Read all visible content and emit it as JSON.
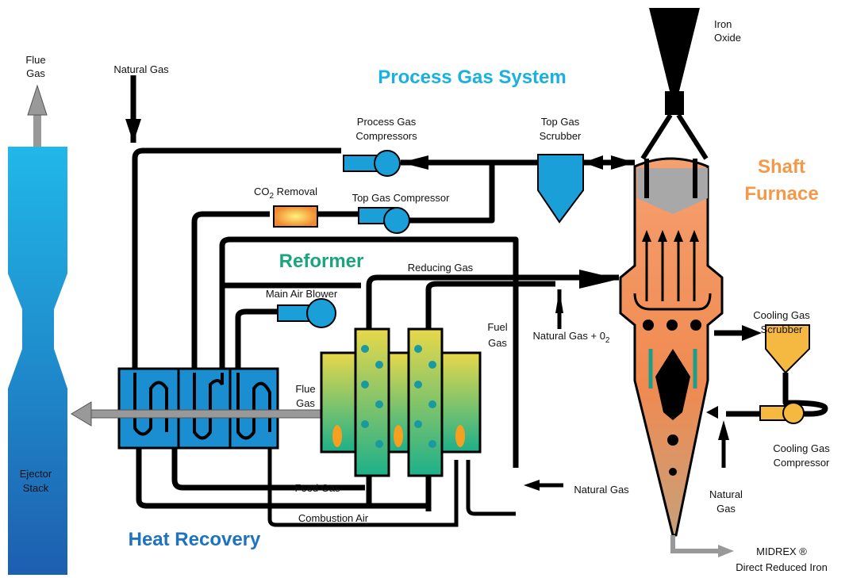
{
  "sections": {
    "process_gas_system": "Process Gas System",
    "shaft_furnace": [
      "Shaft",
      "Furnace"
    ],
    "reformer": "Reformer",
    "heat_recovery": "Heat Recovery"
  },
  "labels": {
    "flue_gas_stack": [
      "Flue",
      "Gas"
    ],
    "natural_gas_top": "Natural Gas",
    "iron_oxide": [
      "Iron",
      "Oxide"
    ],
    "process_gas_compressors": [
      "Process Gas",
      "Compressors"
    ],
    "top_gas_scrubber": [
      "Top Gas",
      "Scrubber"
    ],
    "co2_removal": [
      "CO",
      "2",
      " Removal"
    ],
    "top_gas_compressor": "Top Gas Compressor",
    "reducing_gas": "Reducing Gas",
    "main_air_blower": "Main Air Blower",
    "cooling_gas_scrubber": [
      "Cooling Gas",
      "Scrubber"
    ],
    "fuel_gas": [
      "Fuel",
      "Gas"
    ],
    "natural_gas_o2": [
      "Natural Gas + 0",
      "2"
    ],
    "flue_gas_reformer": [
      "Flue",
      "Gas"
    ],
    "ejector_stack": [
      "Ejector",
      "Stack"
    ],
    "feed_gas": "Feed Gas",
    "natural_gas_right": "Natural Gas",
    "natural_gas_bottom": [
      "Natural",
      "Gas"
    ],
    "cooling_gas_compressor": [
      "Cooling Gas",
      "Compressor"
    ],
    "combustion_air": "Combustion Air",
    "midrex": [
      "MIDREX ®",
      "Direct Reduced Iron"
    ]
  }
}
